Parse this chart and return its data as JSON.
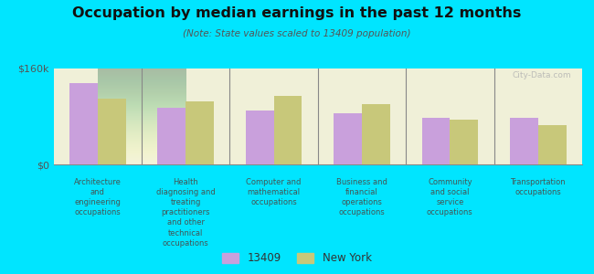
{
  "title": "Occupation by median earnings in the past 12 months",
  "subtitle": "(Note: State values scaled to 13409 population)",
  "background_color": "#00e5ff",
  "categories": [
    "Architecture\nand\nengineering\noccupations",
    "Health\ndiagnosing and\ntreating\npractitioners\nand other\ntechnical\noccupations",
    "Computer and\nmathematical\noccupations",
    "Business and\nfinancial\noperations\noccupations",
    "Community\nand social\nservice\noccupations",
    "Transportation\noccupations"
  ],
  "values_13409": [
    135000,
    95000,
    90000,
    85000,
    78000,
    77000
  ],
  "values_ny": [
    110000,
    105000,
    115000,
    100000,
    75000,
    65000
  ],
  "color_13409": "#c9a0dc",
  "color_ny": "#c8c87a",
  "ylim": [
    0,
    160000
  ],
  "yticks": [
    0,
    160000
  ],
  "ytick_labels": [
    "$0",
    "$160k"
  ],
  "legend_13409": "13409",
  "legend_ny": "New York",
  "watermark": "City-Data.com"
}
